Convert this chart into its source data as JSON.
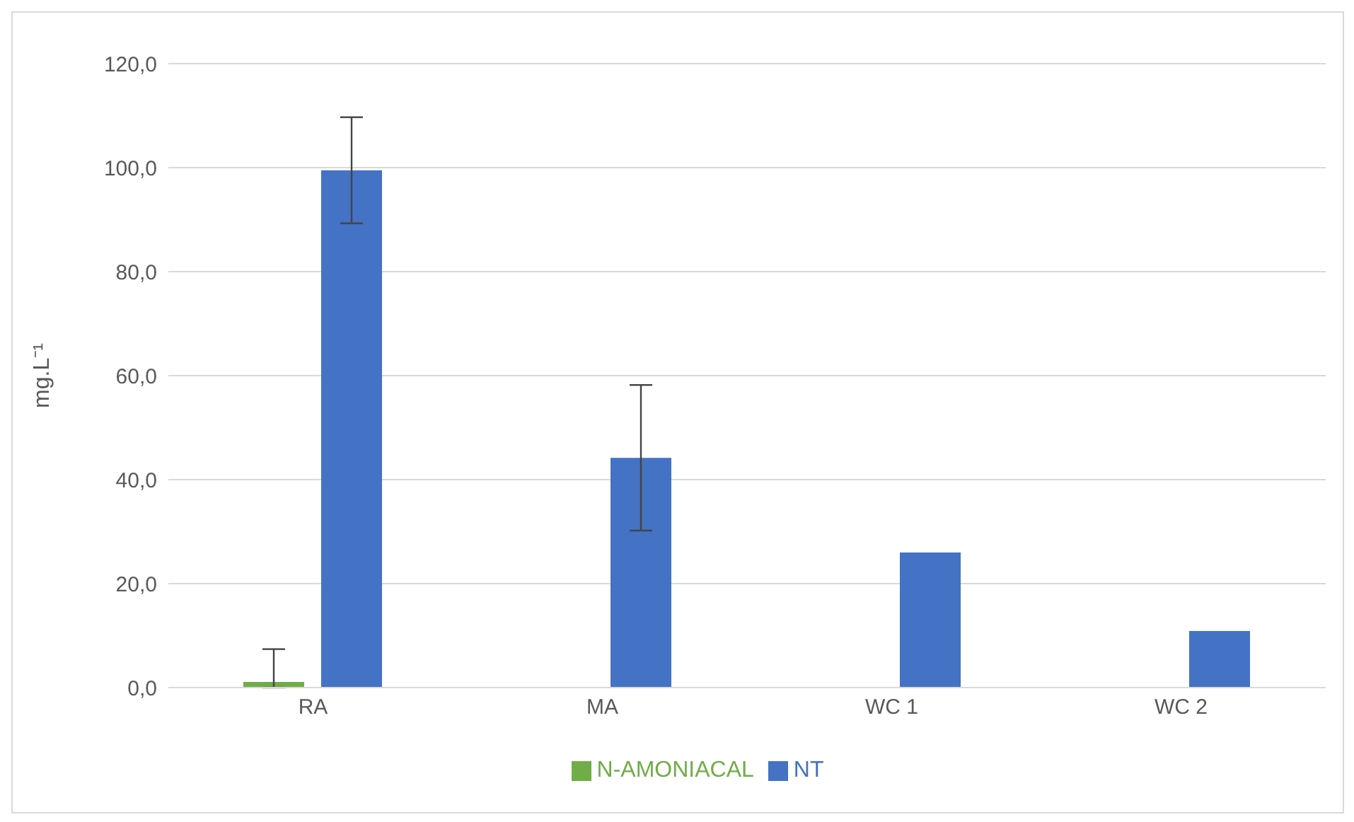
{
  "chart_data": {
    "type": "bar",
    "ylabel": "mg.L⁻¹",
    "categories": [
      "RA",
      "MA",
      "WC 1",
      "WC 2"
    ],
    "series": [
      {
        "name": "N-AMONIACAL",
        "color": "#70ad47",
        "values": [
          1.1,
          0,
          0,
          0
        ],
        "errors": [
          [
            0,
            7.4
          ],
          null,
          null,
          null
        ]
      },
      {
        "name": "NT",
        "color": "#4472c4",
        "values": [
          99.5,
          44.2,
          26.0,
          10.9
        ],
        "errors": [
          10.2,
          14.0,
          null,
          null
        ]
      }
    ],
    "ylim": [
      0,
      120
    ],
    "yticks": [
      {
        "value": 0,
        "label": "0,0"
      },
      {
        "value": 20,
        "label": "20,0"
      },
      {
        "value": 40,
        "label": "40,0"
      },
      {
        "value": 60,
        "label": "60,0"
      },
      {
        "value": 80,
        "label": "80,0"
      },
      {
        "value": 100,
        "label": "100,0"
      },
      {
        "value": 120,
        "label": "120,0"
      }
    ],
    "grid": "y",
    "legend": "bottom"
  }
}
